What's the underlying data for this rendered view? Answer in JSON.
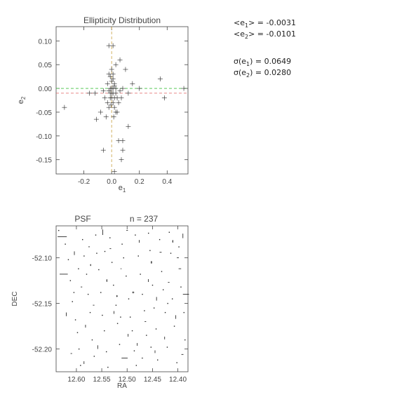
{
  "stats": {
    "e1_mean": {
      "label": "<e",
      "sub": "1",
      "tail": "> = ",
      "value": "-0.0031"
    },
    "e2_mean": {
      "label": "<e",
      "sub": "2",
      "tail": "> = ",
      "value": "-0.0101"
    },
    "e1_sigma": {
      "label": "σ(e",
      "sub": "1",
      "tail": ") = ",
      "value": "0.0649"
    },
    "e2_sigma": {
      "label": "σ(e",
      "sub": "2",
      "tail": ") = ",
      "value": "0.0280"
    }
  },
  "chart_data": [
    {
      "type": "scatter",
      "title": "Ellipticity Distribution",
      "xlabel": "e",
      "xlabel_sub": "1",
      "ylabel": "e",
      "ylabel_sub": "2",
      "xlim": [
        -0.4,
        0.55
      ],
      "ylim": [
        -0.18,
        0.13
      ],
      "xticks": [
        -0.2,
        0.0,
        0.2,
        0.4
      ],
      "xtick_labels": [
        "-0.2",
        "0.0",
        "0.2",
        "0.4"
      ],
      "yticks": [
        0.1,
        0.05,
        0.0,
        -0.05,
        -0.1,
        -0.15
      ],
      "ytick_labels": [
        "0.10",
        "0.05",
        "0.00",
        "-0.05",
        "-0.10",
        "-0.15"
      ],
      "marker": "plus",
      "reference_lines": [
        {
          "axis": "x",
          "value": 0.0,
          "style": "dashed",
          "color": "#c8a040"
        },
        {
          "axis": "y",
          "value": 0.0,
          "style": "dashed",
          "color": "#40c040"
        },
        {
          "axis": "y",
          "value": -0.0101,
          "style": "dashed",
          "color": "#e06060"
        }
      ],
      "points": [
        [
          -0.34,
          -0.04
        ],
        [
          -0.16,
          -0.01
        ],
        [
          -0.11,
          -0.065
        ],
        [
          -0.12,
          -0.01
        ],
        [
          -0.08,
          -0.05
        ],
        [
          -0.06,
          -0.13
        ],
        [
          -0.02,
          0.09
        ],
        [
          0.01,
          0.09
        ],
        [
          0.06,
          0.06
        ],
        [
          0.1,
          0.04
        ],
        [
          0.15,
          0.01
        ],
        [
          0.2,
          0.0
        ],
        [
          0.35,
          0.02
        ],
        [
          0.38,
          -0.02
        ],
        [
          0.52,
          0.0
        ],
        [
          0.08,
          -0.11
        ],
        [
          0.05,
          -0.11
        ],
        [
          0.07,
          -0.15
        ],
        [
          0.08,
          -0.13
        ],
        [
          0.02,
          -0.175
        ],
        [
          0.12,
          -0.08
        ],
        [
          0.12,
          -0.01
        ],
        [
          0.04,
          -0.05
        ],
        [
          -0.04,
          -0.06
        ],
        [
          -0.05,
          -0.02
        ],
        [
          -0.03,
          0.01
        ],
        [
          -0.02,
          0.03
        ],
        [
          0.0,
          0.04
        ],
        [
          0.01,
          0.02
        ],
        [
          0.02,
          0.01
        ],
        [
          0.03,
          0.0
        ],
        [
          0.04,
          -0.02
        ],
        [
          0.05,
          -0.03
        ],
        [
          -0.01,
          -0.01
        ],
        [
          0.0,
          -0.02
        ],
        [
          0.01,
          -0.03
        ],
        [
          0.02,
          -0.04
        ],
        [
          0.03,
          -0.05
        ],
        [
          -0.02,
          -0.04
        ],
        [
          -0.03,
          -0.03
        ],
        [
          0.0,
          0.0
        ],
        [
          0.01,
          -0.01
        ],
        [
          -0.01,
          0.0
        ],
        [
          0.02,
          -0.02
        ],
        [
          0.0,
          -0.01
        ],
        [
          -0.01,
          -0.02
        ],
        [
          0.01,
          0.0
        ],
        [
          0.02,
          0.005
        ],
        [
          0.03,
          -0.01
        ],
        [
          -0.02,
          -0.005
        ],
        [
          0.06,
          -0.005
        ],
        [
          0.08,
          0.0
        ],
        [
          0.07,
          -0.02
        ],
        [
          -0.06,
          -0.005
        ],
        [
          0.0,
          0.015
        ],
        [
          0.01,
          0.03
        ],
        [
          -0.005,
          -0.035
        ],
        [
          0.015,
          -0.06
        ],
        [
          0.03,
          0.05
        ],
        [
          -0.01,
          0.025
        ]
      ]
    },
    {
      "type": "scatter",
      "title": "PSF",
      "subtitle": "n = 237",
      "xlabel": "RA",
      "ylabel": "DEC",
      "xlim": [
        12.64,
        12.38
      ],
      "ylim": [
        -52.225,
        -52.065
      ],
      "xticks": [
        12.6,
        12.55,
        12.5,
        12.45,
        12.4
      ],
      "xtick_labels": [
        "12.60",
        "12.55",
        "12.50",
        "12.45",
        "12.40"
      ],
      "yticks": [
        -52.1,
        -52.15,
        -52.2
      ],
      "ytick_labels": [
        "-52.10",
        "-52.15",
        "-52.20"
      ],
      "marker": "whisker",
      "whiskers": [
        [
          12.628,
          -52.077,
          0.018,
          0.0
        ],
        [
          12.625,
          -52.118,
          0.016,
          0.0
        ],
        [
          12.604,
          -52.095,
          0.0,
          0.004
        ],
        [
          12.59,
          -52.132,
          0.003,
          0.0
        ],
        [
          12.582,
          -52.175,
          0.0,
          0.003
        ],
        [
          12.572,
          -52.108,
          0.002,
          0.002
        ],
        [
          12.566,
          -52.152,
          0.003,
          0.0
        ],
        [
          12.558,
          -52.198,
          0.0,
          0.004
        ],
        [
          12.548,
          -52.072,
          0.0,
          0.006
        ],
        [
          12.54,
          -52.125,
          0.002,
          0.003
        ],
        [
          12.533,
          -52.09,
          0.003,
          0.0
        ],
        [
          12.526,
          -52.16,
          0.0,
          0.003
        ],
        [
          12.512,
          -52.112,
          0.002,
          0.0
        ],
        [
          12.505,
          -52.21,
          0.012,
          0.0
        ],
        [
          12.498,
          -52.185,
          0.0,
          0.003
        ],
        [
          12.488,
          -52.138,
          0.004,
          0.002
        ],
        [
          12.476,
          -52.082,
          0.0,
          0.003
        ],
        [
          12.464,
          -52.17,
          0.003,
          0.0
        ],
        [
          12.452,
          -52.105,
          0.003,
          0.003
        ],
        [
          12.442,
          -52.145,
          0.0,
          0.004
        ],
        [
          12.434,
          -52.094,
          0.004,
          0.0
        ],
        [
          12.426,
          -52.188,
          0.0,
          0.003
        ],
        [
          12.418,
          -52.127,
          0.003,
          0.0
        ],
        [
          12.41,
          -52.082,
          0.002,
          0.003
        ],
        [
          12.404,
          -52.165,
          0.0,
          0.004
        ],
        [
          12.396,
          -52.112,
          0.005,
          0.0
        ],
        [
          12.391,
          -52.206,
          0.004,
          0.0
        ],
        [
          12.384,
          -52.14,
          0.012,
          0.0
        ],
        [
          12.39,
          -52.076,
          0.0,
          0.005
        ],
        [
          12.445,
          -52.203,
          0.0,
          0.003
        ],
        [
          12.47,
          -52.21,
          0.003,
          0.0
        ],
        [
          12.585,
          -52.215,
          0.0,
          0.003
        ],
        [
          12.61,
          -52.205,
          0.003,
          0.0
        ],
        [
          12.62,
          -52.162,
          0.0,
          0.004
        ],
        [
          12.5,
          -52.07,
          0.003,
          0.0
        ],
        [
          12.458,
          -52.125,
          0.0,
          0.003
        ],
        [
          12.575,
          -52.088,
          0.003,
          0.0
        ],
        [
          12.52,
          -52.142,
          0.003,
          0.002
        ],
        [
          12.48,
          -52.195,
          0.0,
          0.003
        ],
        [
          12.4,
          -52.1,
          0.004,
          0.0
        ]
      ],
      "dots": [
        [
          12.635,
          -52.07
        ],
        [
          12.622,
          -52.085
        ],
        [
          12.616,
          -52.102
        ],
        [
          12.612,
          -52.125
        ],
        [
          12.608,
          -52.148
        ],
        [
          12.602,
          -52.168
        ],
        [
          12.598,
          -52.182
        ],
        [
          12.595,
          -52.2
        ],
        [
          12.592,
          -52.218
        ],
        [
          12.588,
          -52.08
        ],
        [
          12.585,
          -52.098
        ],
        [
          12.58,
          -52.118
        ],
        [
          12.577,
          -52.14
        ],
        [
          12.573,
          -52.16
        ],
        [
          12.569,
          -52.19
        ],
        [
          12.562,
          -52.075
        ],
        [
          12.56,
          -52.095
        ],
        [
          12.556,
          -52.113
        ],
        [
          12.552,
          -52.138
        ],
        [
          12.549,
          -52.163
        ],
        [
          12.545,
          -52.18
        ],
        [
          12.541,
          -52.203
        ],
        [
          12.538,
          -52.22
        ],
        [
          12.534,
          -52.078
        ],
        [
          12.53,
          -52.105
        ],
        [
          12.527,
          -52.13
        ],
        [
          12.522,
          -52.152
        ],
        [
          12.519,
          -52.172
        ],
        [
          12.515,
          -52.195
        ],
        [
          12.51,
          -52.085
        ],
        [
          12.507,
          -52.1
        ],
        [
          12.502,
          -52.12
        ],
        [
          12.497,
          -52.145
        ],
        [
          12.494,
          -52.165
        ],
        [
          12.49,
          -52.18
        ],
        [
          12.486,
          -52.202
        ],
        [
          12.482,
          -52.218
        ],
        [
          12.478,
          -52.098
        ],
        [
          12.474,
          -52.118
        ],
        [
          12.47,
          -52.14
        ],
        [
          12.466,
          -52.158
        ],
        [
          12.462,
          -52.185
        ],
        [
          12.458,
          -52.073
        ],
        [
          12.455,
          -52.092
        ],
        [
          12.45,
          -52.13
        ],
        [
          12.447,
          -52.155
        ],
        [
          12.443,
          -52.178
        ],
        [
          12.44,
          -52.212
        ],
        [
          12.436,
          -52.08
        ],
        [
          12.432,
          -52.115
        ],
        [
          12.429,
          -52.135
        ],
        [
          12.425,
          -52.16
        ],
        [
          12.421,
          -52.198
        ],
        [
          12.417,
          -52.072
        ],
        [
          12.414,
          -52.095
        ],
        [
          12.411,
          -52.145
        ],
        [
          12.407,
          -52.175
        ],
        [
          12.402,
          -52.215
        ],
        [
          12.398,
          -52.088
        ],
        [
          12.394,
          -52.132
        ],
        [
          12.388,
          -52.16
        ],
        [
          12.386,
          -52.19
        ],
        [
          12.605,
          -52.138
        ],
        [
          12.596,
          -52.112
        ],
        [
          12.565,
          -52.208
        ],
        [
          12.544,
          -52.093
        ],
        [
          12.513,
          -52.165
        ],
        [
          12.484,
          -52.075
        ],
        [
          12.453,
          -52.198
        ],
        [
          12.42,
          -52.15
        ]
      ]
    }
  ]
}
